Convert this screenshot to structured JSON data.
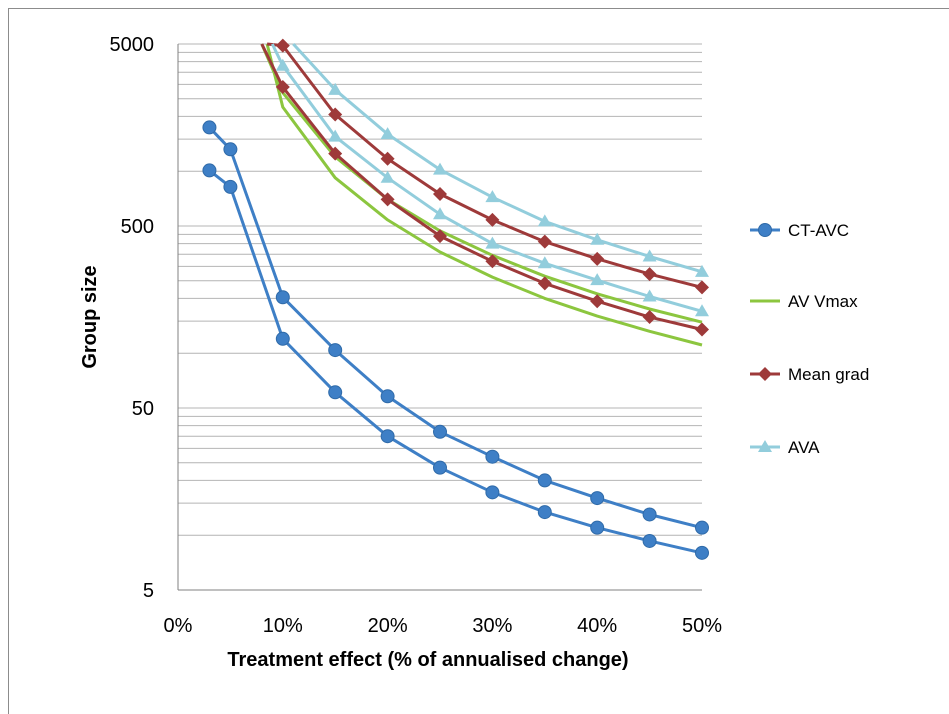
{
  "chart_data": {
    "type": "line",
    "xlabel": "Treatment effect (% of annualised change)",
    "ylabel": "Group size",
    "x_ticks": [
      "0%",
      "10%",
      "20%",
      "30%",
      "40%",
      "50%"
    ],
    "xlim": [
      0,
      50
    ],
    "y_scale": "log",
    "ylim": [
      5,
      5000
    ],
    "y_ticks": [
      "5",
      "50",
      "500",
      "5000"
    ],
    "grid": "horizontal minor log gridlines",
    "legend_position": "right",
    "series": [
      {
        "name": "CT-AVC",
        "color": "#3e7fc6",
        "marker": "circle",
        "x": [
          3,
          5,
          10,
          15,
          20,
          25,
          30,
          35,
          40,
          45,
          50
        ],
        "y": [
          1740,
          1320,
          203,
          104,
          58,
          37,
          27,
          20,
          16,
          13,
          11
        ]
      },
      {
        "name": "CT-AVC",
        "color": "#3e7fc6",
        "marker": "circle",
        "x": [
          3,
          5,
          10,
          15,
          20,
          25,
          30,
          35,
          40,
          45,
          50
        ],
        "y": [
          1010,
          820,
          120,
          61,
          35,
          23.5,
          17.2,
          13.4,
          11,
          9.3,
          8
        ]
      },
      {
        "name": "AV Vmax",
        "color": "#8cc63f",
        "marker": "none",
        "x": [
          8,
          10,
          15,
          20,
          25,
          30,
          35,
          40,
          45,
          50
        ],
        "y": [
          5000,
          2700,
          1200,
          700,
          470,
          345,
          265,
          212,
          175,
          148
        ]
      },
      {
        "name": "AV Vmax",
        "color": "#8cc63f",
        "marker": "none",
        "x": [
          8.5,
          10,
          15,
          20,
          25,
          30,
          35,
          40,
          45,
          50
        ],
        "y": [
          5000,
          2250,
          920,
          540,
          360,
          262,
          200,
          160,
          132,
          111
        ]
      },
      {
        "name": "Mean grad",
        "color": "#9e3a3a",
        "marker": "diamond",
        "x": [
          8.5,
          10,
          15,
          20,
          25,
          30,
          35,
          40,
          45,
          50
        ],
        "y": [
          5000,
          4900,
          2050,
          1170,
          750,
          540,
          410,
          330,
          272,
          230
        ]
      },
      {
        "name": "Mean grad",
        "color": "#9e3a3a",
        "marker": "diamond",
        "x": [
          8,
          10,
          15,
          20,
          25,
          30,
          35,
          40,
          45,
          50
        ],
        "y": [
          5000,
          2900,
          1250,
          700,
          440,
          320,
          242,
          193,
          158,
          135
        ]
      },
      {
        "name": "AVA",
        "color": "#92cddc",
        "marker": "triangle",
        "x": [
          11,
          15,
          20,
          25,
          30,
          35,
          40,
          45,
          50
        ],
        "y": [
          5000,
          2800,
          1600,
          1020,
          720,
          530,
          420,
          340,
          280
        ]
      },
      {
        "name": "AVA",
        "color": "#92cddc",
        "marker": "triangle",
        "x": [
          9,
          10,
          15,
          20,
          25,
          30,
          35,
          40,
          45,
          50
        ],
        "y": [
          5000,
          3800,
          1550,
          920,
          580,
          400,
          312,
          252,
          205,
          170
        ]
      }
    ],
    "legend": [
      {
        "name": "CT-AVC",
        "color": "#3e7fc6",
        "marker": "circle"
      },
      {
        "name": "AV Vmax",
        "color": "#8cc63f",
        "marker": "none"
      },
      {
        "name": "Mean grad",
        "color": "#9e3a3a",
        "marker": "diamond"
      },
      {
        "name": "AVA",
        "color": "#92cddc",
        "marker": "triangle"
      }
    ]
  }
}
